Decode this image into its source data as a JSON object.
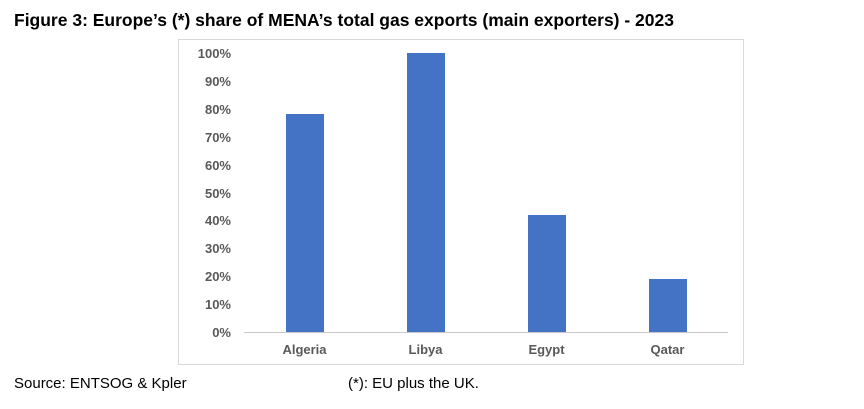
{
  "title": "Figure 3: Europe’s (*) share of MENA’s total gas exports (main exporters) - 2023",
  "chart_data": {
    "type": "bar",
    "categories": [
      "Algeria",
      "Libya",
      "Egypt",
      "Qatar"
    ],
    "values": [
      78,
      100,
      42,
      19
    ],
    "title": "Figure 3: Europe’s (*) share of MENA’s total gas exports (main exporters) - 2023",
    "xlabel": "",
    "ylabel": "",
    "ylim": [
      0,
      100
    ],
    "ytick_step": 10,
    "ytick_labels": [
      "0%",
      "10%",
      "20%",
      "30%",
      "40%",
      "50%",
      "60%",
      "70%",
      "80%",
      "90%",
      "100%"
    ],
    "grid": false,
    "legend": false,
    "bar_color": "#4472C4"
  },
  "footer": {
    "source": "Source: ENTSOG & Kpler",
    "note": "(*): EU plus the UK."
  },
  "colors": {
    "bar": "#4472C4",
    "axis_line": "#C8C8C8",
    "frame_border": "#D9D9D9",
    "tick_label": "#595959",
    "title_text": "#000000",
    "footer_text": "#000000"
  }
}
